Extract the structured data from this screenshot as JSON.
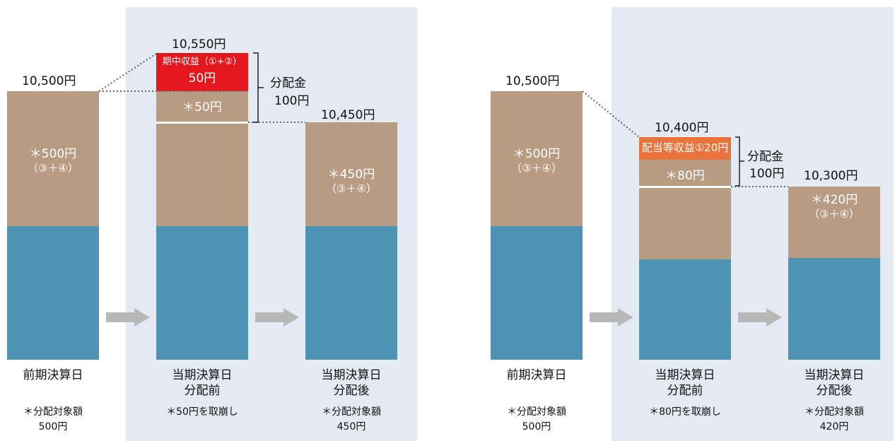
{
  "colors": {
    "base": "#4e93b4",
    "distributable": "#b89b83",
    "income_red": "#e3171c",
    "income_orange": "#e9733a",
    "panel": "#e4eaf4"
  },
  "left": {
    "prev_price": "10,500円",
    "prev_inner_amount": "＊500円",
    "prev_inner_note": "（③＋④）",
    "prev_label": "前期決算日",
    "prev_note_1": "＊分配対象額",
    "prev_note_2": "500円",
    "before_price": "10,550円",
    "before_income_label": "期中収益（①+②）",
    "before_income_amount": "50円",
    "before_drawdown": "＊50円",
    "before_label_1": "当期決算日",
    "before_label_2": "分配前",
    "before_note": "＊50円を取崩し",
    "dist_label": "分配金",
    "dist_amount": "100円",
    "after_price": "10,450円",
    "after_inner_amount": "＊450円",
    "after_inner_note": "（③＋④）",
    "after_label_1": "当期決算日",
    "after_label_2": "分配後",
    "after_note_1": "＊分配対象額",
    "after_note_2": "450円"
  },
  "right": {
    "prev_price": "10,500円",
    "prev_inner_amount": "＊500円",
    "prev_inner_note": "（③＋④）",
    "prev_label": "前期決算日",
    "prev_note_1": "＊分配対象額",
    "prev_note_2": "500円",
    "before_price": "10,400円",
    "before_income_label": "配当等収益①20円",
    "before_drawdown": "＊80円",
    "before_label_1": "当期決算日",
    "before_label_2": "分配前",
    "before_note": "＊80円を取崩し",
    "dist_label": "分配金",
    "dist_amount": "100円",
    "after_price": "10,300円",
    "after_inner_amount": "＊420円",
    "after_inner_note": "（③＋④）",
    "after_label_1": "当期決算日",
    "after_label_2": "分配後",
    "after_note_1": "＊分配対象額",
    "after_note_2": "420円"
  }
}
